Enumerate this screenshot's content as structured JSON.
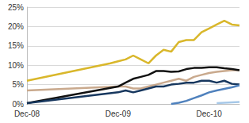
{
  "chart_data": {
    "type": "line",
    "categories": [
      "Dec-08",
      null,
      null,
      null,
      null,
      null,
      null,
      null,
      null,
      null,
      null,
      null,
      "Dec-09",
      null,
      null,
      null,
      null,
      null,
      null,
      null,
      null,
      null,
      null,
      null,
      "Dec-10",
      null,
      null,
      null,
      null
    ],
    "series": [
      {
        "color": "#D9B72B",
        "values": [
          6,
          null,
          null,
          null,
          null,
          null,
          null,
          null,
          null,
          null,
          null,
          10.5,
          11,
          11.5,
          12.5,
          11.5,
          10.5,
          12.5,
          14,
          13.5,
          16,
          16.5,
          16.5,
          18.5,
          19.5,
          20.5,
          21.5,
          20.5,
          20.3
        ]
      },
      {
        "color": "#C9A98D",
        "values": [
          3.5,
          null,
          null,
          null,
          null,
          null,
          null,
          null,
          null,
          null,
          null,
          null,
          4.5,
          4.5,
          4,
          4,
          4.5,
          5,
          5.5,
          6,
          6.5,
          6,
          7,
          7.5,
          8,
          8.3,
          8.5,
          8.7,
          8.7
        ]
      },
      {
        "color": "#111111",
        "values": [
          0.2,
          null,
          null,
          null,
          null,
          null,
          null,
          null,
          null,
          null,
          null,
          null,
          4.5,
          5.5,
          6.5,
          7,
          7.5,
          8.5,
          8.5,
          8.3,
          8.4,
          9,
          9.3,
          9.3,
          9.5,
          9.5,
          9.2,
          9,
          8.7
        ]
      },
      {
        "color": "#17375E",
        "values": [
          0.2,
          null,
          null,
          null,
          null,
          null,
          null,
          null,
          null,
          null,
          null,
          null,
          3,
          3.5,
          3,
          3.5,
          4,
          4.5,
          4.5,
          5,
          5.2,
          5.5,
          5.5,
          6,
          6,
          5.5,
          6,
          5.2,
          5
        ]
      },
      {
        "color": "#4F81BD",
        "values": [
          null,
          null,
          null,
          null,
          null,
          null,
          null,
          null,
          null,
          null,
          null,
          null,
          null,
          null,
          null,
          null,
          null,
          null,
          null,
          0,
          0.3,
          0.8,
          1.5,
          2.2,
          3,
          3.5,
          3.9,
          4.3,
          4.8
        ]
      },
      {
        "color": "#A6C8E8",
        "values": [
          null,
          null,
          null,
          null,
          null,
          null,
          null,
          null,
          null,
          null,
          null,
          null,
          null,
          null,
          null,
          null,
          null,
          null,
          null,
          null,
          null,
          null,
          null,
          null,
          null,
          0.2,
          0.3,
          0.4,
          0.5
        ]
      }
    ],
    "ylim": [
      0,
      25
    ],
    "yticks": [
      {
        "value": 0,
        "label": "0%"
      },
      {
        "value": 5,
        "label": "5%"
      },
      {
        "value": 10,
        "label": "10%"
      },
      {
        "value": 15,
        "label": "15%"
      },
      {
        "value": 20,
        "label": "20%"
      },
      {
        "value": 25,
        "label": "25%"
      }
    ],
    "grid": true
  }
}
